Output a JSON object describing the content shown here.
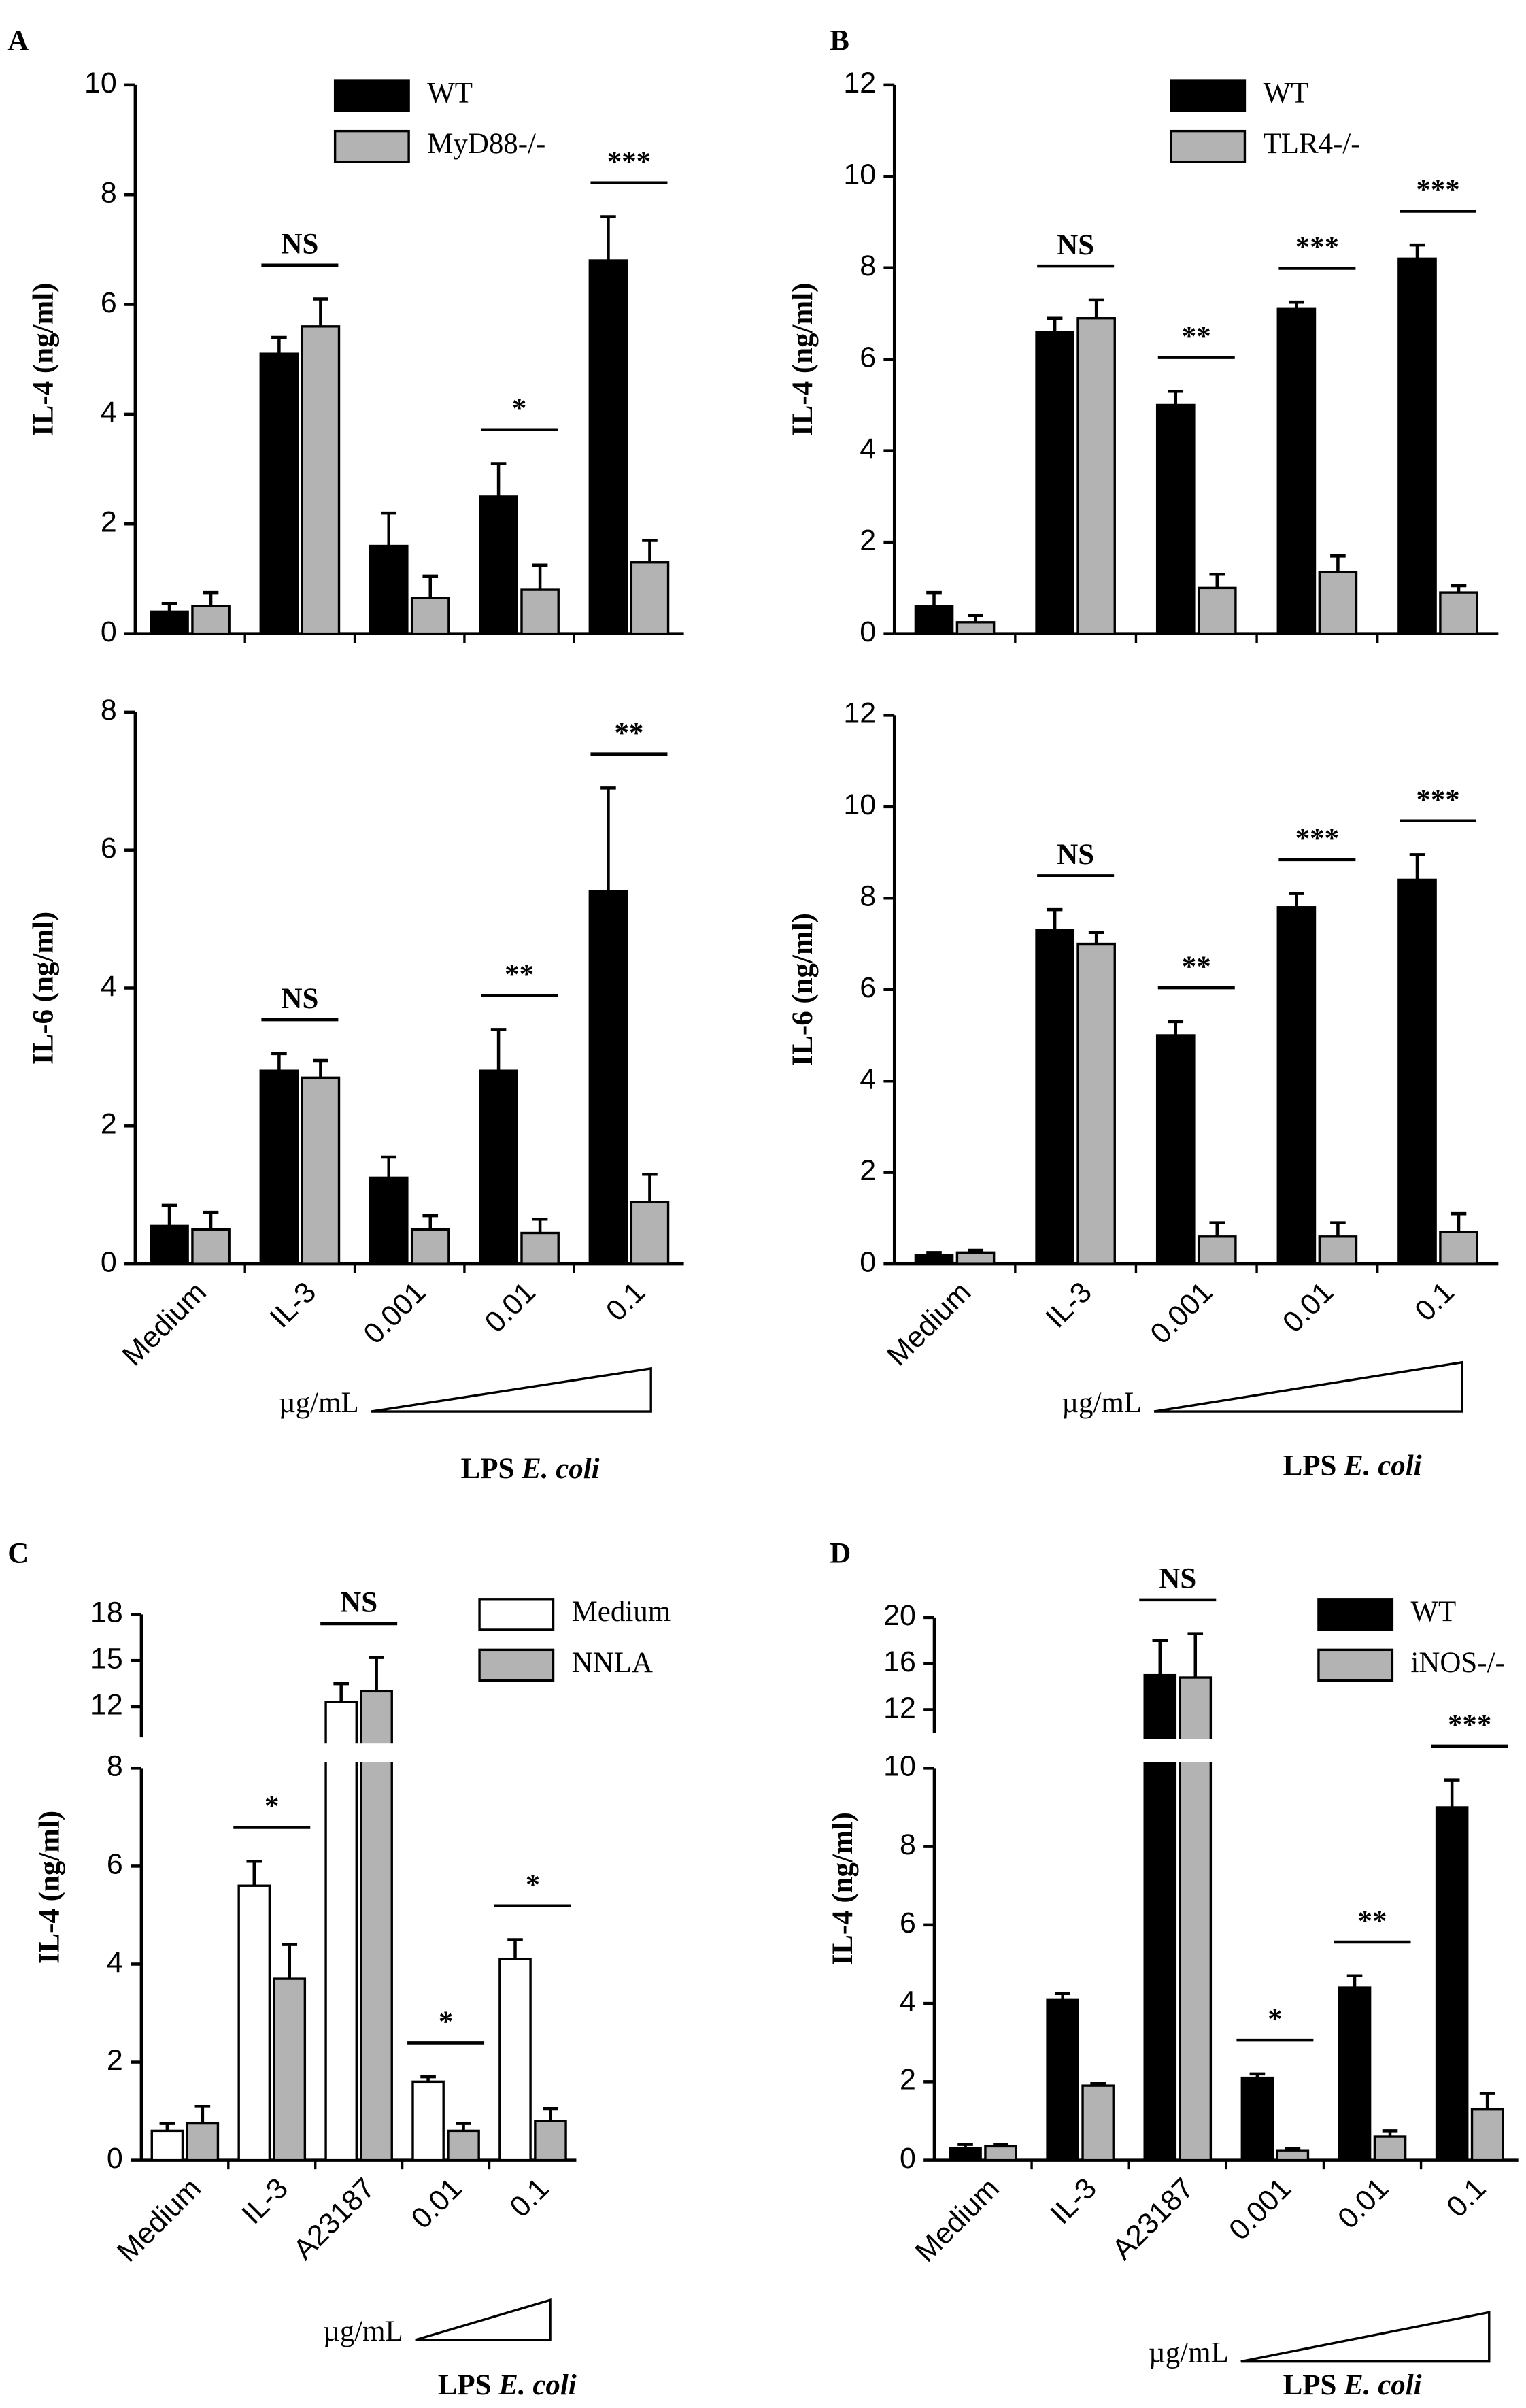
{
  "chart_data": [
    {
      "type": "bar",
      "panel": "A",
      "ylabel": "IL-4 (ng/ml)",
      "ylim": [
        0,
        10
      ],
      "yticks": [
        0,
        2,
        4,
        6,
        8,
        10
      ],
      "series": [
        {
          "name": "WT",
          "color": "#000000",
          "values": [
            0.4,
            5.1,
            1.6,
            2.5,
            6.8
          ],
          "errors": [
            0.15,
            0.3,
            0.6,
            0.6,
            0.8
          ]
        },
        {
          "name": "MyD88-/-",
          "color": "#b3b3b3",
          "values": [
            0.5,
            5.6,
            0.65,
            0.8,
            1.3
          ],
          "errors": [
            0.25,
            0.5,
            0.4,
            0.45,
            0.4
          ]
        }
      ],
      "significance": [
        {
          "text": "NS",
          "category": 1
        },
        {
          "text": "*",
          "category": 3
        },
        {
          "text": "***",
          "category": 4
        }
      ]
    },
    {
      "type": "bar",
      "ylabel": "IL-6 (ng/ml)",
      "ylim": [
        0,
        8
      ],
      "yticks": [
        0,
        2,
        4,
        6,
        8
      ],
      "categories": [
        "Medium",
        "IL-3",
        "0.001",
        "0.01",
        "0.1"
      ],
      "series": [
        {
          "color": "#000000",
          "values": [
            0.55,
            2.8,
            1.25,
            2.8,
            5.4
          ],
          "errors": [
            0.3,
            0.25,
            0.3,
            0.6,
            1.5
          ]
        },
        {
          "color": "#b3b3b3",
          "values": [
            0.5,
            2.7,
            0.5,
            0.45,
            0.9
          ],
          "errors": [
            0.25,
            0.25,
            0.2,
            0.2,
            0.4
          ]
        }
      ],
      "significance": [
        {
          "text": "NS",
          "category": 1
        },
        {
          "text": "**",
          "category": 3
        },
        {
          "text": "**",
          "category": 4
        }
      ],
      "x_note": "µg/mL",
      "x_group": "LPS",
      "x_group_italic": "E. coli"
    },
    {
      "type": "bar",
      "panel": "B",
      "ylabel": "IL-4 (ng/ml)",
      "ylim": [
        0,
        12
      ],
      "yticks": [
        0,
        2,
        4,
        6,
        8,
        10,
        12
      ],
      "series": [
        {
          "name": "WT",
          "color": "#000000",
          "values": [
            0.6,
            6.6,
            5.0,
            7.1,
            8.2
          ],
          "errors": [
            0.3,
            0.3,
            0.3,
            0.15,
            0.3
          ]
        },
        {
          "name": "TLR4-/-",
          "color": "#b3b3b3",
          "values": [
            0.25,
            6.9,
            1.0,
            1.35,
            0.9
          ],
          "errors": [
            0.15,
            0.4,
            0.3,
            0.35,
            0.15
          ]
        }
      ],
      "significance": [
        {
          "text": "NS",
          "category": 1
        },
        {
          "text": "**",
          "category": 2
        },
        {
          "text": "***",
          "category": 3
        },
        {
          "text": "***",
          "category": 4
        }
      ]
    },
    {
      "type": "bar",
      "ylabel": "IL-6 (ng/ml)",
      "ylim": [
        0,
        12
      ],
      "yticks": [
        0,
        2,
        4,
        6,
        8,
        10,
        12
      ],
      "categories": [
        "Medium",
        "IL-3",
        "0.001",
        "0.01",
        "0.1"
      ],
      "series": [
        {
          "color": "#000000",
          "values": [
            0.2,
            7.3,
            5.0,
            7.8,
            8.4
          ],
          "errors": [
            0.05,
            0.45,
            0.3,
            0.3,
            0.55
          ]
        },
        {
          "color": "#b3b3b3",
          "values": [
            0.25,
            7.0,
            0.6,
            0.6,
            0.7
          ],
          "errors": [
            0.05,
            0.25,
            0.3,
            0.3,
            0.4
          ]
        }
      ],
      "significance": [
        {
          "text": "NS",
          "category": 1
        },
        {
          "text": "**",
          "category": 2
        },
        {
          "text": "***",
          "category": 3
        },
        {
          "text": "***",
          "category": 4
        }
      ],
      "x_note": "µg/mL",
      "x_group": "LPS",
      "x_group_italic": "E. coli"
    },
    {
      "type": "bar",
      "panel": "C",
      "ylabel": "IL-4 (ng/ml)",
      "ylim": [
        0,
        8
      ],
      "yticks": [
        0,
        2,
        4,
        6,
        8
      ],
      "break": {
        "ylim": [
          10,
          18
        ],
        "yticks": [
          12,
          15,
          18
        ]
      },
      "categories": [
        "Medium",
        "IL-3",
        "A23187",
        "0.01",
        "0.1"
      ],
      "series": [
        {
          "name": "Medium",
          "color": "#ffffff",
          "values": [
            0.6,
            5.6,
            12.3,
            1.6,
            4.1
          ],
          "errors": [
            0.15,
            0.5,
            1.2,
            0.1,
            0.4
          ]
        },
        {
          "name": "NNLA",
          "color": "#b3b3b3",
          "values": [
            0.75,
            3.7,
            13,
            0.6,
            0.8
          ],
          "errors": [
            0.35,
            0.7,
            2.2,
            0.15,
            0.25
          ]
        }
      ],
      "significance": [
        {
          "text": "*",
          "category": 1
        },
        {
          "text": "NS",
          "category": 2
        },
        {
          "text": "*",
          "category": 3
        },
        {
          "text": "*",
          "category": 4
        }
      ],
      "x_note": "µg/mL",
      "x_group": "LPS",
      "x_group_italic": "E. coli"
    },
    {
      "type": "bar",
      "panel": "D",
      "ylabel": "IL-4 (ng/ml)",
      "ylim": [
        0,
        10
      ],
      "yticks": [
        0,
        2,
        4,
        6,
        8,
        10
      ],
      "break": {
        "ylim": [
          10,
          20
        ],
        "yticks": [
          12,
          16,
          20
        ]
      },
      "categories": [
        "Medium",
        "IL-3",
        "A23187",
        "0.001",
        "0.01",
        "0.1"
      ],
      "series": [
        {
          "name": "WT",
          "color": "#000000",
          "values": [
            0.3,
            4.1,
            15,
            2.1,
            4.4,
            9.0
          ],
          "errors": [
            0.1,
            0.15,
            3,
            0.1,
            0.3,
            0.7
          ]
        },
        {
          "name": "iNOS-/-",
          "color": "#b3b3b3",
          "values": [
            0.35,
            1.9,
            14.8,
            0.25,
            0.6,
            1.3
          ],
          "errors": [
            0.05,
            0.05,
            3.8,
            0.05,
            0.15,
            0.4
          ]
        }
      ],
      "significance": [
        {
          "text": "NS",
          "category": 2
        },
        {
          "text": "*",
          "category": 3
        },
        {
          "text": "**",
          "category": 4
        },
        {
          "text": "***",
          "category": 5
        }
      ],
      "x_note": "µg/mL",
      "x_group": "LPS",
      "x_group_italic": "E. coli"
    }
  ]
}
